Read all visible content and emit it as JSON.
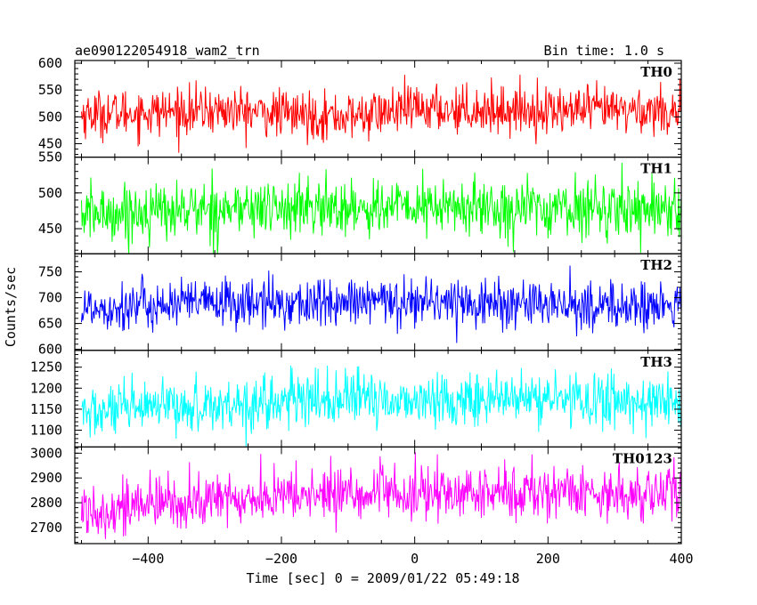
{
  "chart_data": {
    "type": "line",
    "title": "ae090122054918_wam2_trn",
    "subtitle": "Bin time: 1.0 s",
    "xlabel": "Time [sec] 0 = 2009/01/22 05:49:18",
    "ylabel": "Counts/sec",
    "xlim": [
      -510,
      400
    ],
    "x_ticks": [
      -400,
      -200,
      0,
      200,
      400
    ],
    "x_tick_labels": [
      "−400",
      "−200",
      "0",
      "200",
      "400"
    ],
    "x_start": -500,
    "x_end": 400,
    "bin_time": 1.0,
    "panels": [
      {
        "name": "TH0",
        "color": "#ff0000",
        "ylim": [
          425,
          605
        ],
        "y_ticks": [
          450,
          500,
          550,
          600
        ],
        "y_tick_labels": [
          "450",
          "500",
          "550",
          "600"
        ],
        "mean": 510,
        "spread": 22,
        "trend": [
          [
            -500,
            505
          ],
          [
            -300,
            512
          ],
          [
            -100,
            500
          ],
          [
            0,
            515
          ],
          [
            200,
            512
          ],
          [
            400,
            512
          ]
        ]
      },
      {
        "name": "TH1",
        "color": "#00ff00",
        "ylim": [
          415,
          550
        ],
        "y_ticks": [
          450,
          500,
          550
        ],
        "y_tick_labels": [
          "450",
          "500",
          "550"
        ],
        "mean": 478,
        "spread": 20,
        "trend": [
          [
            -500,
            470
          ],
          [
            -300,
            478
          ],
          [
            0,
            480
          ],
          [
            200,
            478
          ],
          [
            400,
            480
          ]
        ]
      },
      {
        "name": "TH2",
        "color": "#0000ff",
        "ylim": [
          598,
          785
        ],
        "y_ticks": [
          600,
          650,
          700,
          750
        ],
        "y_tick_labels": [
          "600",
          "650",
          "700",
          "750"
        ],
        "mean": 685,
        "spread": 24,
        "trend": [
          [
            -500,
            680
          ],
          [
            -300,
            690
          ],
          [
            -100,
            688
          ],
          [
            0,
            695
          ],
          [
            200,
            685
          ],
          [
            400,
            682
          ]
        ]
      },
      {
        "name": "TH3",
        "color": "#00ffff",
        "ylim": [
          1060,
          1290
        ],
        "y_ticks": [
          1100,
          1150,
          1200,
          1250
        ],
        "y_tick_labels": [
          "1100",
          "1150",
          "1200",
          "1250"
        ],
        "mean": 1165,
        "spread": 32,
        "trend": [
          [
            -500,
            1140
          ],
          [
            -300,
            1160
          ],
          [
            -100,
            1175
          ],
          [
            0,
            1170
          ],
          [
            200,
            1175
          ],
          [
            400,
            1165
          ]
        ]
      },
      {
        "name": "TH0123",
        "color": "#ff00ff",
        "ylim": [
          2635,
          3025
        ],
        "y_ticks": [
          2700,
          2800,
          2900,
          3000
        ],
        "y_tick_labels": [
          "2700",
          "2800",
          "2900",
          "3000"
        ],
        "mean": 2825,
        "spread": 55,
        "trend": [
          [
            -500,
            2770
          ],
          [
            -300,
            2810
          ],
          [
            -100,
            2840
          ],
          [
            0,
            2830
          ],
          [
            200,
            2845
          ],
          [
            400,
            2835
          ]
        ]
      }
    ]
  }
}
